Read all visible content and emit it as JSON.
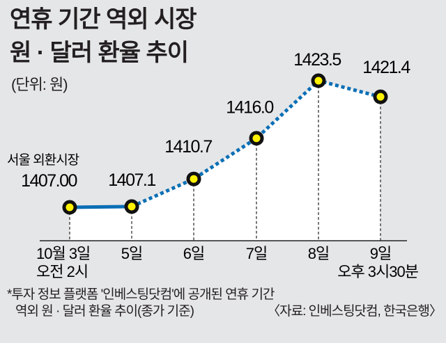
{
  "title_lines": [
    "연휴 기간 역외 시장",
    "원 · 달러 환율 추이"
  ],
  "unit": "(단위: 원)",
  "chart_data": {
    "type": "line",
    "title": "연휴 기간 역외 시장 원 · 달러 환율 추이",
    "ylabel": "(단위: 원)",
    "categories": [
      "10월 3일",
      "5일",
      "6일",
      "7일",
      "8일",
      "9일"
    ],
    "sub_labels": [
      "오전 2시",
      "",
      "",
      "",
      "",
      "오후 3시30분"
    ],
    "values": [
      1407.0,
      1407.1,
      1410.7,
      1416.0,
      1423.5,
      1421.4
    ],
    "value_labels": [
      "1407.00",
      "1407.1",
      "1410.7",
      "1416.0",
      "1423.5",
      "1421.4"
    ],
    "annotation": "서울 외환시장",
    "segments": [
      "solid (서울 외환시장)",
      "dotted (역외)"
    ],
    "ylim": [
      1400,
      1426
    ],
    "grid": false,
    "colors": {
      "line": "#0a6fb5",
      "marker_fill": "#fff200",
      "marker_edge": "#111111",
      "area": "#ffffff"
    }
  },
  "footnote": [
    "*투자 정보 플랫폼 '인베스팅닷컴'에 공개된 연휴 기간",
    "역외 원 · 달러 환율 추이(종가 기준)"
  ],
  "source": "〈자료: 인베스팅닷컴, 한국은행〉"
}
